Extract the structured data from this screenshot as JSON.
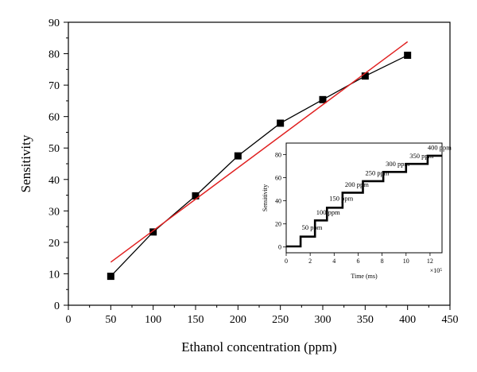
{
  "chart_data": [
    {
      "type": "scatter",
      "xlabel": "Ethanol concentration (ppm)",
      "ylabel": "Sensitivity",
      "xlim": [
        0,
        450
      ],
      "ylim": [
        0,
        90
      ],
      "xticks": [
        "0",
        "50",
        "100",
        "150",
        "200",
        "250",
        "300",
        "350",
        "400",
        "450"
      ],
      "yticks": [
        "0",
        "10",
        "20",
        "30",
        "40",
        "50",
        "60",
        "70",
        "80",
        "90"
      ],
      "grid": false,
      "series": [
        {
          "marker": "square",
          "connected": true,
          "color": "#000000",
          "x": [
            50,
            100,
            150,
            200,
            250,
            300,
            350,
            400
          ],
          "y": [
            9.2,
            23.3,
            34.8,
            47.5,
            57.9,
            65.4,
            72.9,
            79.5
          ]
        }
      ],
      "fit_line": {
        "color": "#e02020",
        "x": [
          50,
          400
        ],
        "y": [
          13.7,
          83.8
        ]
      }
    },
    {
      "type": "line",
      "xlabel": "Time (ms)",
      "ylabel": "Sensitivity",
      "x_multiplier": "×10⁵",
      "xlim": [
        0,
        13
      ],
      "ylim": [
        -5,
        90
      ],
      "xticks": [
        "0",
        "2",
        "4",
        "6",
        "8",
        "10",
        "12"
      ],
      "yticks": [
        "0",
        "20",
        "40",
        "60",
        "80"
      ],
      "color": "#000000",
      "steps": [
        {
          "x_start": 0,
          "x_end": 1.2,
          "y": 0.5
        },
        {
          "x_start": 1.2,
          "x_end": 2.4,
          "y": 9
        },
        {
          "x_start": 2.4,
          "x_end": 3.4,
          "y": 23
        },
        {
          "x_start": 3.4,
          "x_end": 4.7,
          "y": 34
        },
        {
          "x_start": 4.7,
          "x_end": 6.4,
          "y": 47
        },
        {
          "x_start": 6.4,
          "x_end": 8.1,
          "y": 57
        },
        {
          "x_start": 8.1,
          "x_end": 10,
          "y": 65
        },
        {
          "x_start": 10,
          "x_end": 11.8,
          "y": 72
        },
        {
          "x_start": 11.8,
          "x_end": 13,
          "y": 79
        }
      ],
      "annotations": [
        {
          "text": "50 ppm",
          "x": 1.3,
          "y": 15
        },
        {
          "text": "100 ppm",
          "x": 2.5,
          "y": 28
        },
        {
          "text": "150 ppm",
          "x": 3.6,
          "y": 40
        },
        {
          "text": "200 ppm",
          "x": 4.9,
          "y": 52
        },
        {
          "text": "250 ppm",
          "x": 6.6,
          "y": 62
        },
        {
          "text": "300 ppm",
          "x": 8.3,
          "y": 70
        },
        {
          "text": "350 ppm",
          "x": 10.3,
          "y": 77
        },
        {
          "text": "400 ppm",
          "x": 11.8,
          "y": 84
        }
      ]
    }
  ]
}
